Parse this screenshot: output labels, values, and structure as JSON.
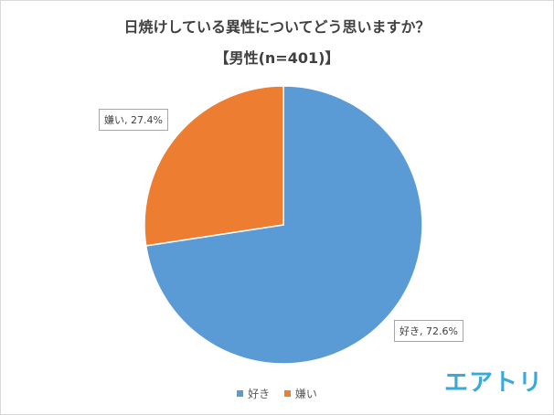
{
  "title": "日焼けしている異性についてどう思いますか？",
  "subtitle": "【男性(n=401)】",
  "chart_data": {
    "type": "pie",
    "title": "日焼けしている異性についてどう思いますか？",
    "subtitle": "【男性(n=401)】",
    "slices": [
      {
        "label": "好き",
        "value": 72.6,
        "color": "#5b9bd5",
        "data_label": "好き, 72.6%"
      },
      {
        "label": "嫌い",
        "value": 27.4,
        "color": "#ed7d31",
        "data_label": "嫌い, 27.4%"
      }
    ],
    "legend_position": "bottom"
  },
  "legend": [
    {
      "label": "好き",
      "color": "#5b9bd5"
    },
    {
      "label": "嫌い",
      "color": "#ed7d31"
    }
  ],
  "logo": "エアトリ"
}
